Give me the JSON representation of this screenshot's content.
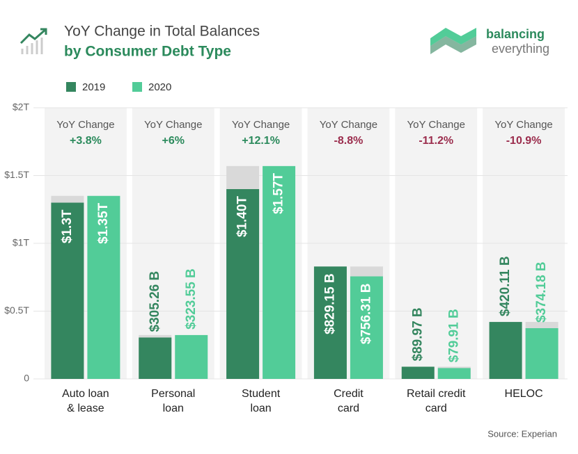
{
  "chart_data": {
    "type": "bar",
    "title": "YoY Change in Total Balances",
    "subtitle": "by Consumer Debt Type",
    "brand": "balancing",
    "brand_sub": "everything",
    "source": "Source: Experian",
    "categories": [
      "Auto loan\n& lease",
      "Personal\nloan",
      "Student\nloan",
      "Credit\ncard",
      "Retail credit\ncard",
      "HELOC"
    ],
    "series": [
      {
        "name": "2019",
        "color": "#34865f",
        "values": [
          1.3,
          0.30526,
          1.4,
          0.82915,
          0.08997,
          0.42011
        ],
        "value_labels": [
          "$1.3T",
          "$305.26 B",
          "$1.40T",
          "$829.15 B",
          "$89.97 B",
          "$420.11 B"
        ]
      },
      {
        "name": "2020",
        "color": "#52cc98",
        "values": [
          1.35,
          0.32355,
          1.57,
          0.75631,
          0.07991,
          0.37418
        ],
        "value_labels": [
          "$1.35T",
          "$323.55 B",
          "$1.57T",
          "$756.31 B",
          "$79.91 B",
          "$374.18 B"
        ]
      }
    ],
    "yoy_label": "YoY Change",
    "yoy_changes": [
      "+3.8%",
      "+6%",
      "+12.1%",
      "-8.8%",
      "-11.2%",
      "-10.9%"
    ],
    "positive_color": "#2b8a5c",
    "negative_color": "#9b2d4d",
    "difference_color": "#d9d9d9",
    "ylim": [
      0,
      2
    ],
    "yticks": [
      0,
      {
        "value": 0.5,
        "label": "$0.5T"
      },
      {
        "value": 1,
        "label": "$1T"
      },
      {
        "value": 1.5,
        "label": "$1.5T"
      },
      {
        "value": 2,
        "label": "$2T"
      }
    ],
    "grid": true
  }
}
